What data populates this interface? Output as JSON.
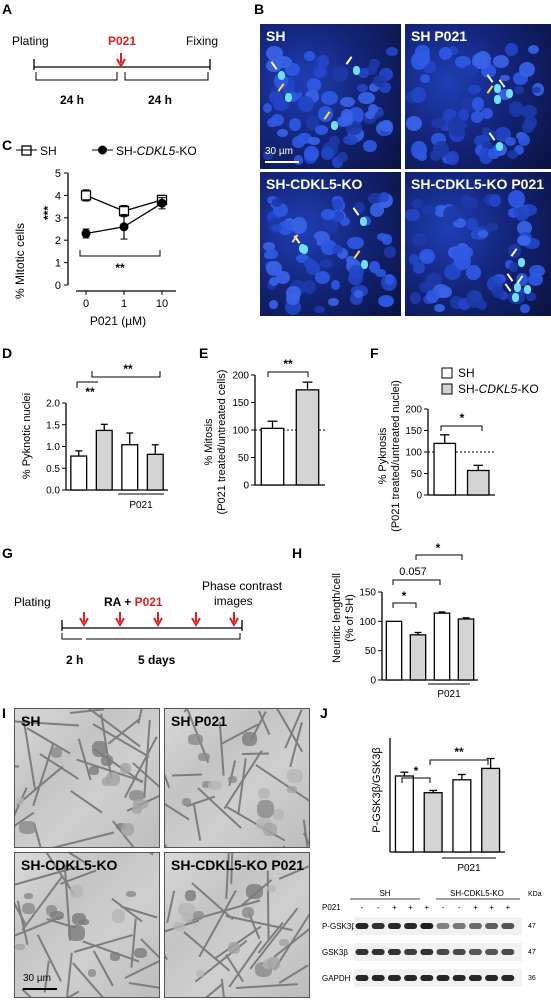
{
  "panels": {
    "A": {
      "letter": "A",
      "plating": "Plating",
      "drug": "P021",
      "fixing": "Fixing",
      "interval1": "24 h",
      "interval2": "24 h",
      "drug_color": "#e02020"
    },
    "B": {
      "letter": "B",
      "labels": [
        "SH",
        "SH P021",
        "SH-CDKL5-KO",
        "SH-CDKL5-KO P021"
      ],
      "scale_bar": "30 µm"
    },
    "C": {
      "letter": "C",
      "legend_sh": "SH",
      "legend_ko_prefix": "SH-",
      "legend_ko_gene": "CDKL5",
      "legend_ko_suffix": "-KO",
      "ylabel": "% Mitotic cells",
      "xlabel": "P021 (µM)",
      "sig_vertical": "***",
      "sig_bracket": "**"
    },
    "D": {
      "letter": "D",
      "ylabel": "% Pyknotic nuclei",
      "treat_label": "P021",
      "sig1": "**",
      "sig2": "**"
    },
    "E": {
      "letter": "E",
      "ylabel1": "% Mitosis",
      "ylabel2": "(P021 treated/untreated cells)",
      "sig": "**"
    },
    "F": {
      "letter": "F",
      "ylabel1": "% Pyknosis",
      "ylabel2": "(P021 treated/untreated nuclei)",
      "sig": "*",
      "legend_sh": "SH",
      "legend_ko_prefix": "SH-",
      "legend_ko_gene": "CDKL5",
      "legend_ko_suffix": "-KO"
    },
    "G": {
      "letter": "G",
      "plating": "Plating",
      "ra": "RA",
      "plus": " + ",
      "drug": "P021",
      "phase1": "Phase contrast",
      "phase2": "images",
      "interval1": "2 h",
      "interval2": "5 days",
      "drug_color": "#e02020"
    },
    "H": {
      "letter": "H",
      "ylabel1": "Neuritic length/cell",
      "ylabel2": "(% of SH)",
      "treat_label": "P021",
      "sig1": "*",
      "sig2": "0.057",
      "sig3": "*"
    },
    "I": {
      "letter": "I",
      "labels": [
        "SH",
        "SH P021",
        "SH-CDKL5-KO",
        "SH-CDKL5-KO P021"
      ],
      "scale_bar": "30 µm"
    },
    "J": {
      "letter": "J",
      "ylabel": "P-GSK3β/GSK3β",
      "treat_label": "P021",
      "sig1": "*",
      "sig2": "**",
      "blot_header_sh": "SH",
      "blot_header_ko": "SH-CDKL5-KO",
      "blot_row_p021": "P021",
      "blot_signs": [
        "-",
        "-",
        "+",
        "+",
        "+",
        "-",
        "-",
        "+",
        "+",
        "+"
      ],
      "blot_rows": [
        "P-GSK3β",
        "GSK3β",
        "GAPDH"
      ],
      "kda_header": "KDa",
      "kda": [
        "47",
        "47",
        "36"
      ]
    }
  },
  "chart_data": [
    {
      "id": "C",
      "type": "line",
      "x": [
        0,
        1,
        10
      ],
      "xticks": [
        "0",
        "1",
        "10"
      ],
      "xscale": "log-like",
      "xlabel": "P021 (µM)",
      "ylabel": "% Mitotic cells",
      "ylim": [
        0,
        5
      ],
      "yticks": [
        0,
        1,
        2,
        3,
        4,
        5
      ],
      "legend_position": "top",
      "series": [
        {
          "name": "SH",
          "marker": "open-square",
          "values": [
            4.0,
            3.3,
            3.8
          ],
          "errors": [
            0.25,
            0.25,
            0.15
          ]
        },
        {
          "name": "SH-CDKL5-KO",
          "marker": "filled-circle",
          "values": [
            2.3,
            2.6,
            3.65
          ],
          "errors": [
            0.2,
            0.55,
            0.25
          ]
        }
      ]
    },
    {
      "id": "D",
      "type": "bar",
      "ylabel": "% Pyknotic nuclei",
      "ylim": [
        0,
        2.0
      ],
      "yticks": [
        0.0,
        0.5,
        1.0,
        1.5,
        2.0
      ],
      "bars": [
        {
          "group": "SH",
          "value": 0.78,
          "error": 0.12
        },
        {
          "group": "SH-CDKL5-KO",
          "value": 1.37,
          "error": 0.14
        },
        {
          "group": "SH",
          "value": 1.04,
          "error": 0.27
        },
        {
          "group": "SH-CDKL5-KO",
          "value": 0.82,
          "error": 0.22
        }
      ]
    },
    {
      "id": "E",
      "type": "bar",
      "ylabel": "% Mitosis (P021 treated/untreated cells)",
      "ylim": [
        0,
        200
      ],
      "yticks": [
        0,
        50,
        100,
        150,
        200
      ],
      "reference_line": 100,
      "bars": [
        {
          "group": "SH",
          "value": 103,
          "error": 13
        },
        {
          "group": "SH-CDKL5-KO",
          "value": 173,
          "error": 14
        }
      ]
    },
    {
      "id": "F",
      "type": "bar",
      "ylabel": "% Pyknosis (P021 treated/untreated nuclei)",
      "ylim": [
        0,
        200
      ],
      "yticks": [
        0,
        50,
        100,
        150,
        200
      ],
      "reference_line": 100,
      "bars": [
        {
          "group": "SH",
          "value": 120,
          "error": 20
        },
        {
          "group": "SH-CDKL5-KO",
          "value": 57,
          "error": 12
        }
      ]
    },
    {
      "id": "H",
      "type": "bar",
      "ylabel": "Neuritic length/cell (% of SH)",
      "ylim": [
        0,
        150
      ],
      "yticks": [
        0,
        50,
        100,
        150
      ],
      "bars": [
        {
          "group": "SH",
          "value": 100,
          "error": 0
        },
        {
          "group": "SH-CDKL5-KO",
          "value": 77,
          "error": 4
        },
        {
          "group": "SH",
          "value": 114,
          "error": 2
        },
        {
          "group": "SH-CDKL5-KO",
          "value": 104,
          "error": 2
        }
      ]
    },
    {
      "id": "J",
      "type": "bar",
      "ylabel": "P-GSK3β/GSK3β",
      "ylim": [
        0,
        150
      ],
      "yticks": [],
      "bars": [
        {
          "group": "SH",
          "value": 100,
          "error": 5
        },
        {
          "group": "SH-CDKL5-KO",
          "value": 78,
          "error": 3
        },
        {
          "group": "SH",
          "value": 95,
          "error": 7
        },
        {
          "group": "SH-CDKL5-KO",
          "value": 110,
          "error": 13
        }
      ]
    }
  ]
}
